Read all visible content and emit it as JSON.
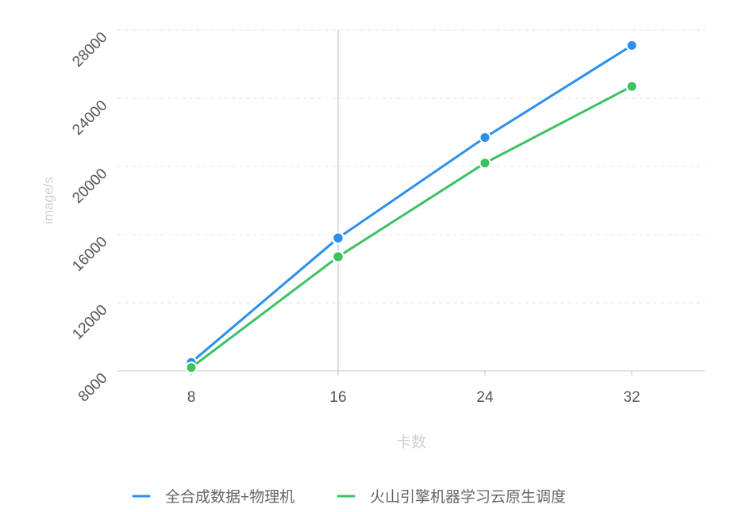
{
  "chart_data": {
    "type": "line",
    "title": "",
    "xlabel": "卡数",
    "ylabel": "image/s",
    "x": [
      8,
      16,
      24,
      32
    ],
    "x_tick_labels": [
      "8",
      "16",
      "24",
      "32"
    ],
    "ylim": [
      8000,
      28000
    ],
    "y_ticks": [
      8000,
      12000,
      16000,
      20000,
      24000,
      28000
    ],
    "y_tick_labels": [
      "8000",
      "12000",
      "16000",
      "20000",
      "24000",
      "28000"
    ],
    "grid": "horizontal-dashed",
    "legend_position": "bottom-center",
    "hover_x": 16,
    "series": [
      {
        "name": "全合成数据+物理机",
        "color": "#2b8ff0",
        "values": [
          8500,
          15800,
          21700,
          27100
        ]
      },
      {
        "name": "火山引擎机器学习云原生调度",
        "color": "#3cc262",
        "values": [
          8200,
          14700,
          20200,
          24700
        ]
      }
    ],
    "colors": {
      "axis": "#c4c4c4",
      "grid": "#e6e6e6",
      "tick_text": "#555555",
      "axis_title": "#cfcfcf",
      "legend_text": "#666666",
      "hover_line": "#bfbfbf"
    }
  }
}
